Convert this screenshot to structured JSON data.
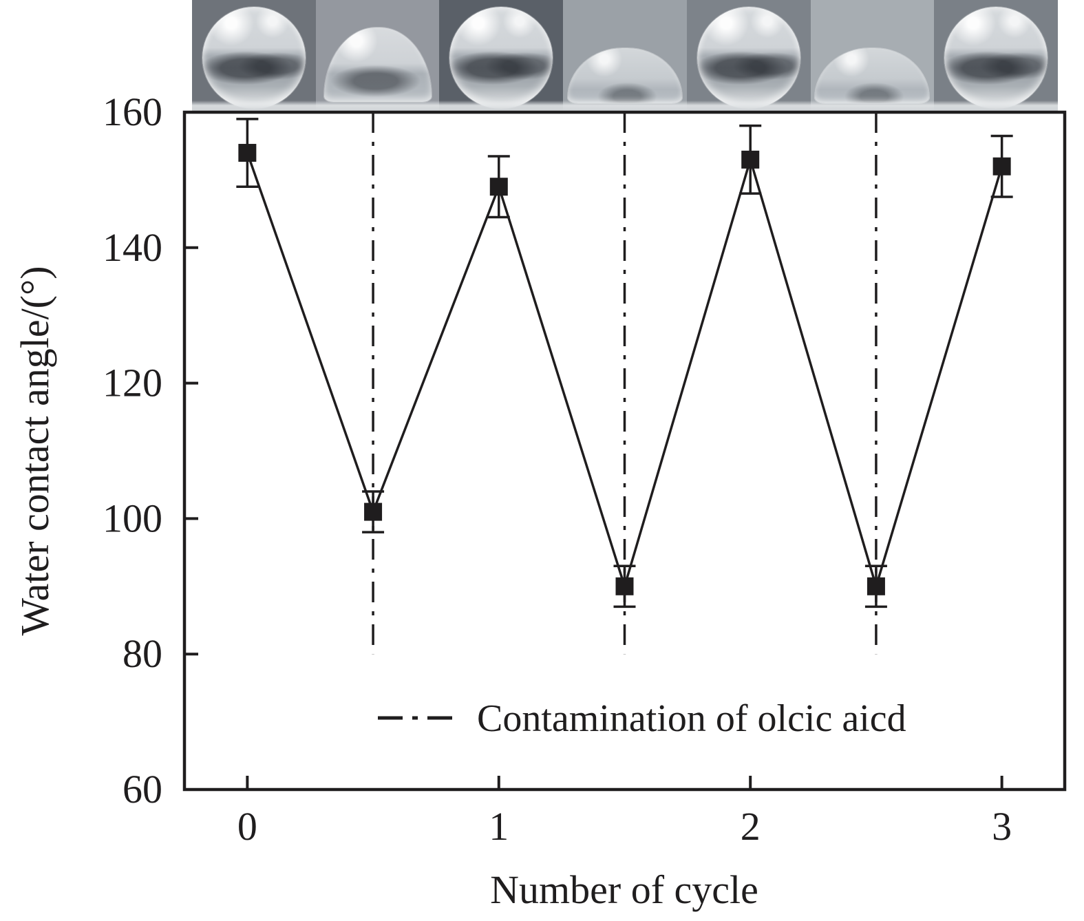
{
  "figure": {
    "background": "#ffffff",
    "ink_color": "#1f1d1e"
  },
  "chart_data": {
    "type": "line",
    "x": [
      0,
      0.5,
      1,
      1.5,
      2,
      2.5,
      3
    ],
    "values": [
      154,
      101,
      149,
      90,
      153,
      90,
      152
    ],
    "errors": [
      5,
      3,
      4.5,
      3,
      5,
      3,
      4.5
    ],
    "xlabel": "Number of cycle",
    "ylabel": "Water contact angle/(°)",
    "xlim": [
      -0.25,
      3.25
    ],
    "ylim": [
      60,
      160
    ],
    "xticks": [
      0,
      1,
      2,
      3
    ],
    "yticks": [
      60,
      80,
      100,
      120,
      140,
      160
    ],
    "marker": "filled-square",
    "line_style": "solid",
    "grid": false,
    "contamination_markers": {
      "style": "dash-dot-vertical-line",
      "x_positions": [
        0.5,
        1.5,
        2.5
      ],
      "y_span": [
        80,
        160
      ]
    },
    "legend": {
      "position": "inside-bottom-center",
      "entries": [
        {
          "marker": "dash-dot-line",
          "label": "Contamination of olcic aicd"
        }
      ]
    }
  },
  "photo_strip": {
    "photos": [
      {
        "name": "droplet-photo-1",
        "shape": "sphere",
        "bg": "#6e737a"
      },
      {
        "name": "droplet-photo-2",
        "shape": "dome-tall",
        "bg": "#94989f"
      },
      {
        "name": "droplet-photo-3",
        "shape": "sphere",
        "bg": "#5a6068"
      },
      {
        "name": "droplet-photo-4",
        "shape": "dome-flat",
        "bg": "#9ba1a7"
      },
      {
        "name": "droplet-photo-5",
        "shape": "sphere",
        "bg": "#7d838a"
      },
      {
        "name": "droplet-photo-6",
        "shape": "dome-flat",
        "bg": "#a7adb2"
      },
      {
        "name": "droplet-photo-7",
        "shape": "sphere",
        "bg": "#7a8087"
      }
    ]
  }
}
